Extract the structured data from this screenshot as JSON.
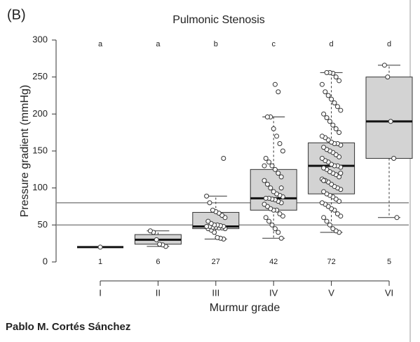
{
  "chart_data": {
    "type": "box",
    "panel_label": "(B)",
    "title": "Pulmonic Stenosis",
    "y_label": "Pressure gradient (mmHg)",
    "x_label": "Murmur grade",
    "credit": "Pablo M. Cortés Sánchez",
    "categories": [
      "I",
      "II",
      "III",
      "IV",
      "V",
      "VI"
    ],
    "letters": [
      "a",
      "a",
      "b",
      "c",
      "d",
      "d"
    ],
    "counts": [
      1,
      6,
      27,
      42,
      72,
      5
    ],
    "boxes": [
      {
        "whisker_low": 20,
        "q1": 20,
        "median": 20,
        "q3": 20,
        "whisker_high": 20
      },
      {
        "whisker_low": 21,
        "q1": 24,
        "median": 30,
        "q3": 37,
        "whisker_high": 42
      },
      {
        "whisker_low": 31,
        "q1": 45,
        "median": 48,
        "q3": 67,
        "whisker_high": 89
      },
      {
        "whisker_low": 32,
        "q1": 70,
        "median": 86,
        "q3": 125,
        "whisker_high": 196
      },
      {
        "whisker_low": 40,
        "q1": 92,
        "median": 130,
        "q3": 161,
        "whisker_high": 256
      },
      {
        "whisker_low": 60,
        "q1": 140,
        "median": 190,
        "q3": 250,
        "whisker_high": 266
      }
    ],
    "points": [
      [
        20
      ],
      [
        21,
        23,
        24,
        30,
        40,
        42
      ],
      [
        31,
        32,
        33,
        40,
        43,
        45,
        45,
        46,
        46,
        47,
        47,
        48,
        48,
        48,
        49,
        50,
        50,
        52,
        55,
        60,
        63,
        66,
        68,
        70,
        80,
        89,
        140
      ],
      [
        32,
        40,
        45,
        50,
        55,
        60,
        62,
        65,
        70,
        70,
        72,
        75,
        78,
        80,
        82,
        84,
        85,
        86,
        86,
        88,
        90,
        92,
        95,
        100,
        105,
        110,
        115,
        120,
        125,
        130,
        135,
        140,
        150,
        160,
        170,
        180,
        196,
        196,
        130,
        100,
        230,
        240
      ],
      [
        40,
        42,
        45,
        50,
        55,
        60,
        62,
        65,
        70,
        72,
        75,
        78,
        80,
        82,
        85,
        88,
        90,
        92,
        95,
        98,
        100,
        102,
        105,
        108,
        110,
        112,
        115,
        118,
        120,
        122,
        125,
        127,
        128,
        130,
        130,
        132,
        135,
        137,
        140,
        142,
        145,
        148,
        150,
        152,
        155,
        158,
        160,
        160,
        162,
        165,
        168,
        170,
        175,
        180,
        185,
        190,
        195,
        200,
        205,
        210,
        215,
        220,
        225,
        230,
        240,
        245,
        250,
        255,
        256,
        256,
        110,
        120
      ],
      [
        60,
        140,
        190,
        250,
        266
      ]
    ],
    "hlines": [
      80,
      50
    ],
    "box_color": "#d3d3d3",
    "ylim": [
      0,
      300
    ],
    "yticks": [
      0,
      50,
      100,
      150,
      200,
      250,
      300
    ]
  }
}
